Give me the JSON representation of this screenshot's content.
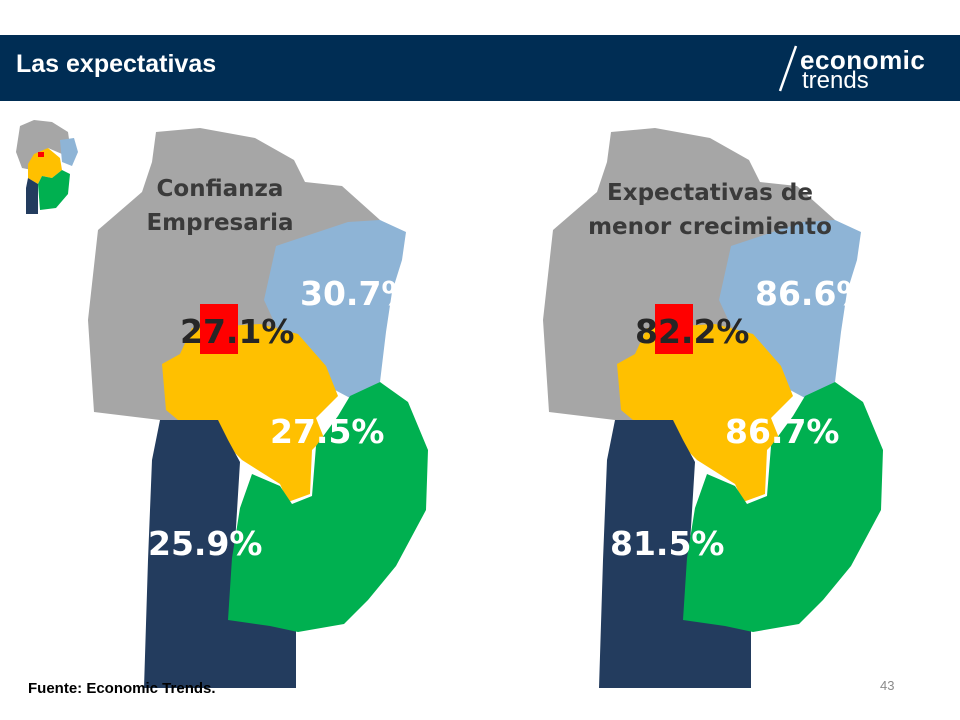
{
  "slide": {
    "title": "Las expectativas",
    "source": "Fuente: Economic Trends.",
    "page_number": "43"
  },
  "logo": {
    "line1": "economic",
    "line2": "trends"
  },
  "colors": {
    "header": "#002d54",
    "northwest": "#a6a6a6",
    "northeast": "#8eb4d6",
    "center": "#ffc000",
    "capital": "#ff0000",
    "south": "#233c5e",
    "southeast": "#00b050"
  },
  "maps": [
    {
      "title_line1": "Confianza",
      "title_line2": "Empresaria",
      "values": {
        "northeast": "30.7%",
        "capital": "27.1%",
        "center_south": "27.5%",
        "southwest": "25.9%"
      }
    },
    {
      "title_line1": "Expectativas de",
      "title_line2": "menor crecimiento",
      "values": {
        "northeast": "86.6%",
        "capital": "82.2%",
        "center_south": "86.7%",
        "southwest": "81.5%"
      }
    }
  ]
}
